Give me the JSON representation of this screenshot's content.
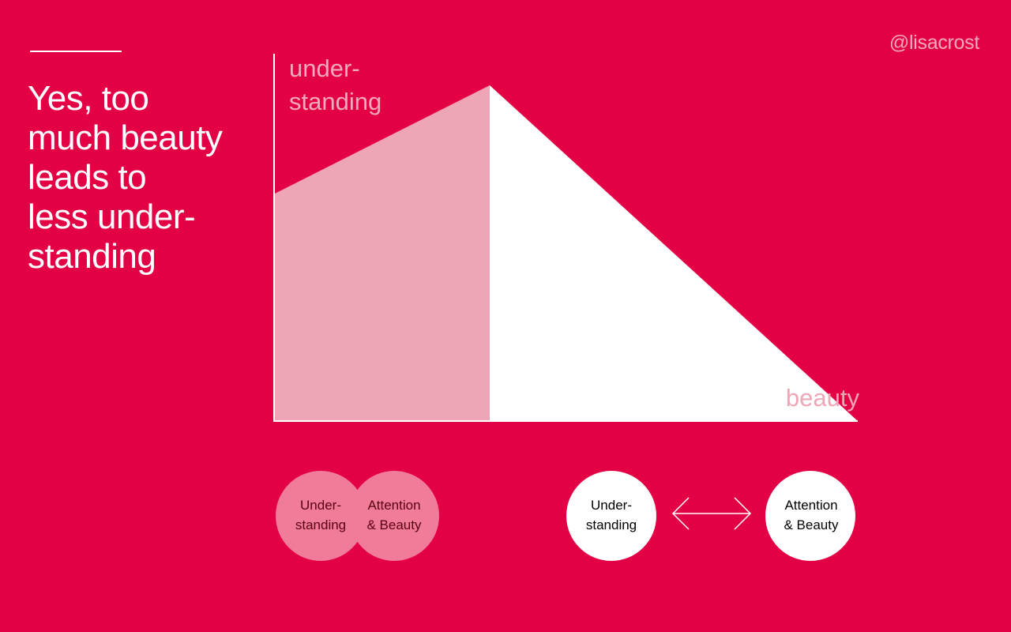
{
  "headline": {
    "lines": [
      "Yes, too",
      "much beauty",
      "leads to",
      "less under-",
      "standing"
    ]
  },
  "handle": "@lisacrost",
  "diagram": {
    "y_axis_label": [
      "under-",
      "standing"
    ],
    "x_axis_label": "beauty"
  },
  "overlap_pair": {
    "left": [
      "Under-",
      "standing"
    ],
    "right": [
      "Attention",
      "& Beauty"
    ]
  },
  "separate_pair": {
    "left": [
      "Under-",
      "standing"
    ],
    "right": [
      "Attention",
      "& Beauty"
    ]
  },
  "colors": {
    "background": "#e30045",
    "white": "#ffffff",
    "pink_fill": "#eea6b7",
    "pink_circle": "#f07c9a",
    "label_pink": "#f2a9bd"
  }
}
